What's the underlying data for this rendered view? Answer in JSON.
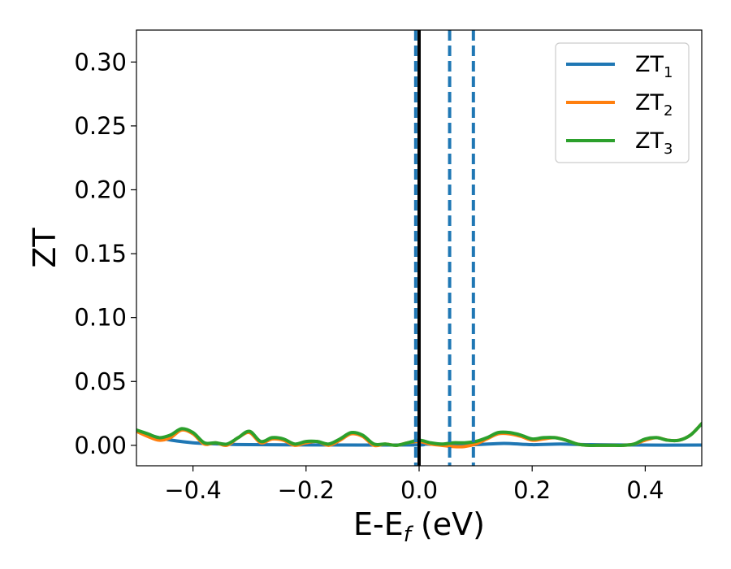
{
  "chart_data": {
    "type": "line",
    "xlabel": "E-E",
    "xlabel_sub": "f",
    "xlabel_unit": " (eV)",
    "ylabel": "ZT",
    "xlim": [
      -0.5,
      0.5
    ],
    "ylim": [
      -0.016,
      0.325
    ],
    "xticks": [
      -0.4,
      -0.2,
      0.0,
      0.2,
      0.4
    ],
    "xtick_labels": [
      "−0.4",
      "−0.2",
      "0.0",
      "0.2",
      "0.4"
    ],
    "yticks": [
      0.0,
      0.05,
      0.1,
      0.15,
      0.2,
      0.25,
      0.3
    ],
    "ytick_labels": [
      "0.00",
      "0.05",
      "0.10",
      "0.15",
      "0.20",
      "0.25",
      "0.30"
    ],
    "grid": false,
    "legend_position": "top-right",
    "series": [
      {
        "name": "ZT",
        "name_sub": "1",
        "color": "#1f77b4",
        "x": [
          -0.5,
          -0.45,
          -0.4,
          -0.35,
          -0.3,
          -0.2,
          -0.1,
          0.0,
          0.01,
          0.05,
          0.1,
          0.15,
          0.2,
          0.25,
          0.3,
          0.4,
          0.5
        ],
        "y": [
          0.011,
          0.005,
          0.002,
          0.001,
          0.0005,
          0.0003,
          0.0002,
          0.0003,
          0.001,
          0.0005,
          0.0005,
          0.0015,
          0.0005,
          0.001,
          0.0005,
          0.0002,
          0.0002
        ]
      },
      {
        "name": "ZT",
        "name_sub": "2",
        "color": "#ff7f0e",
        "x": [
          -0.5,
          -0.48,
          -0.46,
          -0.44,
          -0.42,
          -0.4,
          -0.38,
          -0.36,
          -0.34,
          -0.32,
          -0.3,
          -0.28,
          -0.26,
          -0.24,
          -0.22,
          -0.2,
          -0.18,
          -0.16,
          -0.14,
          -0.12,
          -0.1,
          -0.08,
          -0.06,
          -0.04,
          -0.02,
          0.0,
          0.02,
          0.04,
          0.06,
          0.08,
          0.1,
          0.12,
          0.14,
          0.16,
          0.18,
          0.2,
          0.22,
          0.24,
          0.26,
          0.28,
          0.3,
          0.32,
          0.34,
          0.36,
          0.38,
          0.4,
          0.42,
          0.44,
          0.46,
          0.48,
          0.5
        ],
        "y": [
          0.011,
          0.007,
          0.004,
          0.006,
          0.012,
          0.009,
          0.001,
          0.002,
          0.0,
          0.006,
          0.01,
          0.002,
          0.005,
          0.004,
          0.0,
          0.002,
          0.003,
          0.0,
          0.004,
          0.009,
          0.007,
          0.0,
          0.001,
          0.0,
          0.002,
          0.003,
          0.001,
          0.0,
          -0.001,
          -0.001,
          0.001,
          0.005,
          0.009,
          0.009,
          0.007,
          0.004,
          0.005,
          0.006,
          0.004,
          0.001,
          0.0,
          0.0,
          0.0,
          0.0,
          0.001,
          0.004,
          0.006,
          0.004,
          0.004,
          0.008,
          0.017
        ]
      },
      {
        "name": "ZT",
        "name_sub": "3",
        "color": "#2ca02c",
        "x": [
          -0.5,
          -0.48,
          -0.46,
          -0.44,
          -0.42,
          -0.4,
          -0.38,
          -0.36,
          -0.34,
          -0.32,
          -0.3,
          -0.28,
          -0.26,
          -0.24,
          -0.22,
          -0.2,
          -0.18,
          -0.16,
          -0.14,
          -0.12,
          -0.1,
          -0.08,
          -0.06,
          -0.04,
          -0.02,
          0.0,
          0.02,
          0.04,
          0.06,
          0.08,
          0.1,
          0.12,
          0.14,
          0.16,
          0.18,
          0.2,
          0.22,
          0.24,
          0.26,
          0.28,
          0.3,
          0.32,
          0.34,
          0.36,
          0.38,
          0.4,
          0.42,
          0.44,
          0.46,
          0.48,
          0.5
        ],
        "y": [
          0.012,
          0.009,
          0.006,
          0.008,
          0.013,
          0.01,
          0.002,
          0.002,
          0.001,
          0.006,
          0.011,
          0.003,
          0.006,
          0.005,
          0.001,
          0.003,
          0.003,
          0.001,
          0.005,
          0.01,
          0.008,
          0.001,
          0.001,
          0.0,
          0.002,
          0.004,
          0.002,
          0.001,
          0.002,
          0.002,
          0.003,
          0.006,
          0.01,
          0.01,
          0.008,
          0.005,
          0.006,
          0.006,
          0.004,
          0.001,
          0.0,
          0.0,
          0.0,
          0.0,
          0.001,
          0.005,
          0.006,
          0.004,
          0.004,
          0.008,
          0.017
        ]
      }
    ],
    "vlines": [
      {
        "x": 0.0,
        "style": "solid",
        "color": "#000000"
      },
      {
        "x": -0.006,
        "style": "dashed",
        "color": "#1f77b4"
      },
      {
        "x": 0.054,
        "style": "dashed",
        "color": "#1f77b4"
      },
      {
        "x": 0.096,
        "style": "dashed",
        "color": "#1f77b4"
      }
    ]
  }
}
